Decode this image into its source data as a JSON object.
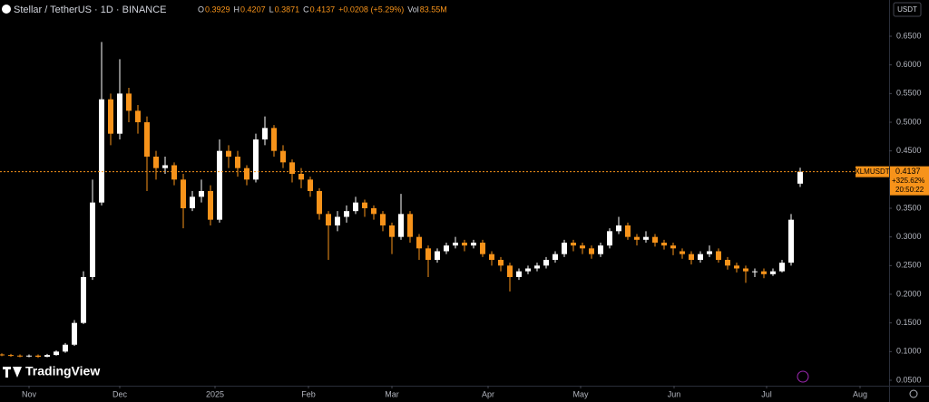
{
  "chart_data": {
    "type": "candlestick",
    "title": "Stellar / TetherUS · 1D · BINANCE",
    "ohlc_header": [
      {
        "key": "O",
        "text": "0.3929"
      },
      {
        "key": "H",
        "text": "0.4207"
      },
      {
        "key": "L",
        "text": "0.3871"
      },
      {
        "key": "C",
        "text": "0.4137"
      }
    ],
    "change_text": "+0.0208 (+5.29%)",
    "volume": {
      "key": "Vol",
      "text": "83.55M"
    },
    "currency": "USDT",
    "symbol": "XLMUSDT",
    "change_pct_text": "+325.62%",
    "countdown": "20:50:22",
    "logo": "TradingView",
    "up_color": "#ffffff",
    "down_color": "#f7931a",
    "categories": [
      null,
      null,
      null,
      null,
      null,
      null,
      null,
      null,
      null,
      null,
      null,
      null,
      null,
      null,
      null,
      null,
      null,
      null,
      null,
      null,
      null,
      null,
      null,
      null,
      null,
      null,
      null,
      null,
      null,
      null,
      null,
      null,
      null,
      null,
      null,
      null,
      null,
      null,
      null,
      null,
      null,
      null,
      null,
      null,
      null,
      null,
      null,
      null,
      null,
      null,
      null,
      null,
      null,
      null,
      null,
      null,
      null,
      null,
      null,
      null,
      null,
      null,
      null,
      null,
      null,
      null,
      null,
      null,
      null,
      null,
      null,
      null,
      null,
      null,
      null,
      null,
      null,
      null,
      null,
      null,
      null,
      null,
      null,
      null,
      null,
      null,
      null,
      null,
      null
    ],
    "open": [
      0.095,
      0.094,
      0.093,
      0.092,
      0.093,
      0.091,
      0.094,
      0.1,
      0.112,
      0.15,
      0.23,
      0.36,
      0.54,
      0.48,
      0.55,
      0.52,
      0.5,
      0.44,
      0.42,
      0.425,
      0.4,
      0.35,
      0.37,
      0.38,
      0.33,
      0.45,
      0.44,
      0.42,
      0.4,
      0.47,
      0.49,
      0.45,
      0.43,
      0.41,
      0.4,
      0.38,
      0.34,
      0.32,
      0.335,
      0.345,
      0.36,
      0.35,
      0.34,
      0.32,
      0.3,
      0.34,
      0.3,
      0.28,
      0.26,
      0.275,
      0.285,
      0.29,
      0.285,
      0.29,
      0.27,
      0.26,
      0.25,
      0.23,
      0.24,
      0.245,
      0.25,
      0.26,
      0.27,
      0.29,
      0.285,
      0.28,
      0.27,
      0.285,
      0.31,
      0.32,
      0.3,
      0.295,
      0.3,
      0.29,
      0.285,
      0.275,
      0.27,
      0.26,
      0.27,
      0.275,
      0.26,
      0.25,
      0.245,
      0.24,
      0.24,
      0.235,
      0.24,
      0.255,
      0.3929
    ],
    "high": [
      0.097,
      0.096,
      0.095,
      0.095,
      0.095,
      0.096,
      0.102,
      0.115,
      0.155,
      0.24,
      0.4,
      0.64,
      0.55,
      0.61,
      0.56,
      0.53,
      0.51,
      0.45,
      0.44,
      0.43,
      0.41,
      0.38,
      0.4,
      0.39,
      0.47,
      0.46,
      0.45,
      0.425,
      0.48,
      0.51,
      0.495,
      0.46,
      0.435,
      0.42,
      0.405,
      0.385,
      0.345,
      0.345,
      0.355,
      0.37,
      0.365,
      0.355,
      0.345,
      0.325,
      0.375,
      0.345,
      0.305,
      0.285,
      0.28,
      0.29,
      0.3,
      0.295,
      0.295,
      0.295,
      0.275,
      0.265,
      0.255,
      0.245,
      0.25,
      0.255,
      0.265,
      0.275,
      0.295,
      0.295,
      0.29,
      0.285,
      0.29,
      0.315,
      0.335,
      0.325,
      0.305,
      0.31,
      0.305,
      0.295,
      0.29,
      0.28,
      0.275,
      0.275,
      0.285,
      0.28,
      0.265,
      0.255,
      0.25,
      0.245,
      0.245,
      0.245,
      0.26,
      0.34,
      0.4207
    ],
    "low": [
      0.092,
      0.091,
      0.09,
      0.09,
      0.089,
      0.09,
      0.093,
      0.098,
      0.11,
      0.148,
      0.225,
      0.355,
      0.46,
      0.47,
      0.5,
      0.48,
      0.38,
      0.4,
      0.41,
      0.39,
      0.315,
      0.345,
      0.36,
      0.32,
      0.325,
      0.42,
      0.405,
      0.39,
      0.395,
      0.46,
      0.44,
      0.42,
      0.395,
      0.385,
      0.37,
      0.33,
      0.26,
      0.31,
      0.325,
      0.34,
      0.335,
      0.33,
      0.31,
      0.27,
      0.295,
      0.29,
      0.26,
      0.23,
      0.255,
      0.27,
      0.28,
      0.275,
      0.28,
      0.265,
      0.25,
      0.24,
      0.205,
      0.225,
      0.235,
      0.24,
      0.245,
      0.255,
      0.265,
      0.275,
      0.27,
      0.262,
      0.265,
      0.28,
      0.305,
      0.295,
      0.285,
      0.29,
      0.283,
      0.278,
      0.268,
      0.262,
      0.252,
      0.255,
      0.265,
      0.255,
      0.243,
      0.238,
      0.22,
      0.23,
      0.228,
      0.232,
      0.238,
      0.25,
      0.3871
    ],
    "close": [
      0.094,
      0.093,
      0.092,
      0.093,
      0.091,
      0.094,
      0.1,
      0.112,
      0.15,
      0.23,
      0.36,
      0.54,
      0.48,
      0.55,
      0.52,
      0.5,
      0.44,
      0.42,
      0.425,
      0.4,
      0.35,
      0.37,
      0.38,
      0.33,
      0.45,
      0.44,
      0.42,
      0.4,
      0.47,
      0.49,
      0.45,
      0.43,
      0.41,
      0.4,
      0.38,
      0.34,
      0.32,
      0.335,
      0.345,
      0.36,
      0.35,
      0.34,
      0.32,
      0.3,
      0.34,
      0.3,
      0.28,
      0.26,
      0.275,
      0.285,
      0.29,
      0.285,
      0.29,
      0.27,
      0.26,
      0.25,
      0.23,
      0.24,
      0.245,
      0.25,
      0.26,
      0.27,
      0.29,
      0.285,
      0.28,
      0.27,
      0.285,
      0.31,
      0.32,
      0.3,
      0.295,
      0.3,
      0.29,
      0.285,
      0.28,
      0.27,
      0.26,
      0.27,
      0.275,
      0.26,
      0.25,
      0.245,
      0.24,
      0.24,
      0.235,
      0.24,
      0.255,
      0.33,
      0.4137
    ],
    "xlim": [
      -0.2,
      97.8
    ],
    "xticks": [
      {
        "value": 3,
        "label": "Nov"
      },
      {
        "value": 13,
        "label": "Dec"
      },
      {
        "value": 23.5,
        "label": "2025"
      },
      {
        "value": 33.8,
        "label": "Feb"
      },
      {
        "value": 43,
        "label": "Mar"
      },
      {
        "value": 53.6,
        "label": "Apr"
      },
      {
        "value": 63.8,
        "label": "May"
      },
      {
        "value": 74.1,
        "label": "Jun"
      },
      {
        "value": 84.3,
        "label": "Jul"
      },
      {
        "value": 94.6,
        "label": "Aug"
      }
    ],
    "ylim": [
      0.0405,
      0.7132
    ],
    "yticks": [
      {
        "value": 0.65,
        "label": "0.6500"
      },
      {
        "value": 0.6,
        "label": "0.6000"
      },
      {
        "value": 0.55,
        "label": "0.5500"
      },
      {
        "value": 0.5,
        "label": "0.5000"
      },
      {
        "value": 0.45,
        "label": "0.4500"
      },
      {
        "value": 0.4,
        "label": "0.4000"
      },
      {
        "value": 0.35,
        "label": "0.3500"
      },
      {
        "value": 0.3,
        "label": "0.3000"
      },
      {
        "value": 0.25,
        "label": "0.2500"
      },
      {
        "value": 0.2,
        "label": "0.2000"
      },
      {
        "value": 0.15,
        "label": "0.1500"
      },
      {
        "value": 0.1,
        "label": "0.1000"
      },
      {
        "value": 0.05,
        "label": "0.0500"
      }
    ],
    "last_price_line": true
  }
}
